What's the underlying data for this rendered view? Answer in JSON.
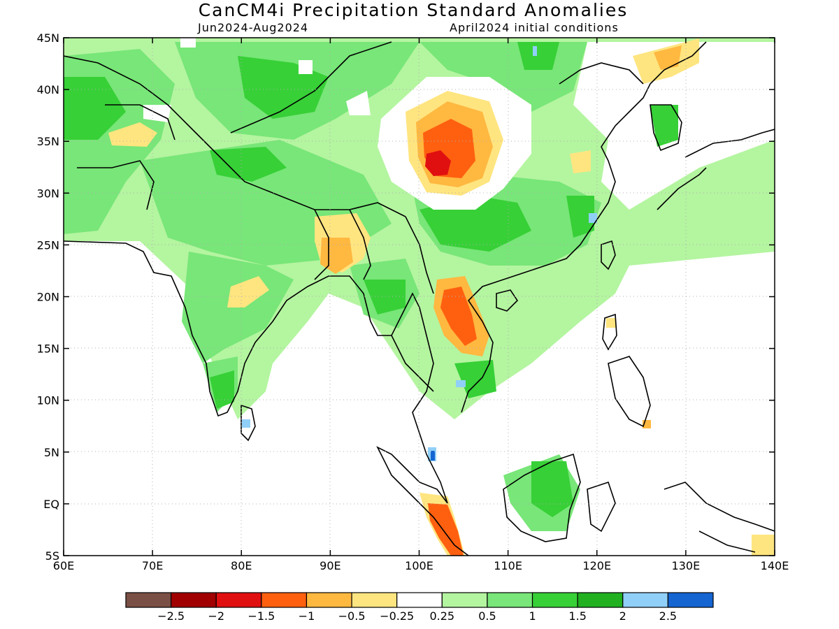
{
  "title": "CanCM4i Precipitation Standard Anomalies",
  "subtitle_left": "Jun2024-Aug2024",
  "subtitle_right": "April2024 initial conditions",
  "lat_labels": [
    "45N",
    "40N",
    "35N",
    "30N",
    "25N",
    "20N",
    "15N",
    "10N",
    "5N",
    "EQ",
    "5S"
  ],
  "lon_labels": [
    "60E",
    "70E",
    "80E",
    "90E",
    "100E",
    "110E",
    "120E",
    "130E",
    "140E"
  ],
  "colorbar": {
    "colors": [
      "#7a4f45",
      "#a00000",
      "#e01010",
      "#ff6010",
      "#ffb840",
      "#ffe580",
      "#ffffff",
      "#b4f5a0",
      "#78e678",
      "#37d037",
      "#20b020",
      "#90d0f8",
      "#1464d2"
    ],
    "labels": [
      "-2.5",
      "-2",
      "-1.5",
      "-1",
      "-0.5",
      "-0.25",
      "0.25",
      "0.5",
      "1",
      "1.5",
      "2",
      "2.5"
    ]
  }
}
